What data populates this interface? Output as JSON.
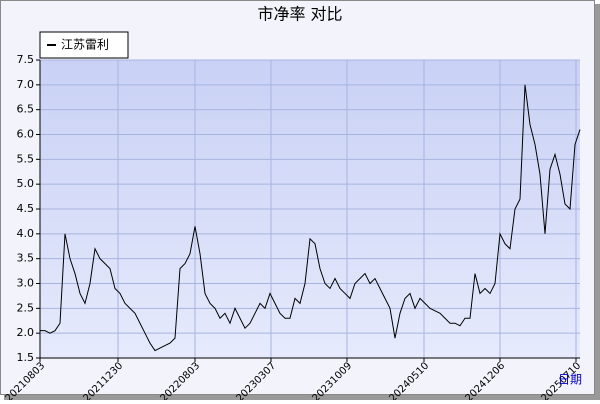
{
  "chart_data": {
    "type": "line",
    "title": "市净率  对比",
    "x_label": "日期",
    "series": [
      {
        "name": "江苏雷利",
        "color": "#000000",
        "values": [
          2.05,
          2.05,
          2.0,
          2.05,
          2.2,
          4.0,
          3.5,
          3.2,
          2.8,
          2.6,
          3.0,
          3.7,
          3.5,
          3.4,
          3.3,
          2.9,
          2.8,
          2.6,
          2.5,
          2.4,
          2.2,
          2.0,
          1.8,
          1.65,
          1.7,
          1.75,
          1.8,
          1.9,
          3.3,
          3.4,
          3.6,
          4.15,
          3.6,
          2.8,
          2.6,
          2.5,
          2.3,
          2.4,
          2.2,
          2.5,
          2.3,
          2.1,
          2.2,
          2.4,
          2.6,
          2.5,
          2.8,
          2.6,
          2.4,
          2.3,
          2.3,
          2.7,
          2.6,
          3.0,
          3.9,
          3.8,
          3.3,
          3.0,
          2.9,
          3.1,
          2.9,
          2.8,
          2.7,
          3.0,
          3.1,
          3.2,
          3.0,
          3.1,
          2.9,
          2.7,
          2.5,
          1.9,
          2.4,
          2.7,
          2.8,
          2.5,
          2.7,
          2.6,
          2.5,
          2.45,
          2.4,
          2.3,
          2.2,
          2.2,
          2.15,
          2.3,
          2.3,
          3.2,
          2.8,
          2.9,
          2.8,
          3.0,
          4.0,
          3.8,
          3.7,
          4.5,
          4.7,
          7.0,
          6.2,
          5.8,
          5.2,
          4.0,
          5.3,
          5.6,
          5.2,
          4.6,
          4.5,
          5.8,
          6.1
        ]
      }
    ],
    "xlim": [
      0,
      108
    ],
    "xticks": [
      {
        "value": 0,
        "label": "20210803"
      },
      {
        "value": 15.6,
        "label": "20211230"
      },
      {
        "value": 31,
        "label": "20220803"
      },
      {
        "value": 46.2,
        "label": "20230307"
      },
      {
        "value": 61.4,
        "label": "20231009"
      },
      {
        "value": 76.8,
        "label": "20240510"
      },
      {
        "value": 92,
        "label": "20241206"
      },
      {
        "value": 107.2,
        "label": "20250710"
      }
    ],
    "ylim": [
      1.5,
      7.5
    ],
    "yticks": [
      1.5,
      {
        "value": 2,
        "label": "2.0"
      },
      2.5,
      {
        "value": 3,
        "label": "3.0"
      },
      3.5,
      {
        "value": 4,
        "label": "4.0"
      },
      4.5,
      {
        "value": 5,
        "label": "5.0"
      },
      5.5,
      {
        "value": 6,
        "label": "6.0"
      },
      6.5,
      {
        "value": 7,
        "label": "7.0"
      },
      7.5
    ],
    "grid": true
  }
}
